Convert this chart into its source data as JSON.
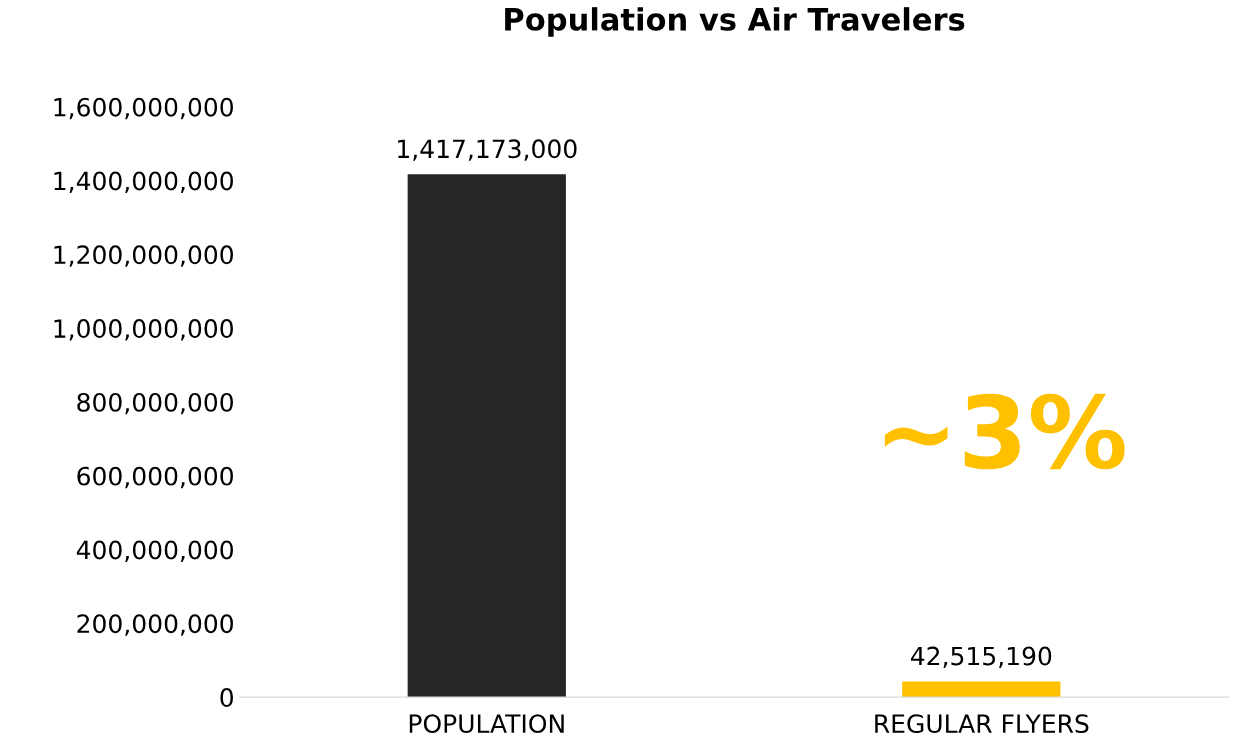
{
  "chart_data": {
    "type": "bar",
    "title": "Population vs Air Travelers",
    "categories": [
      "POPULATION",
      "REGULAR FLYERS"
    ],
    "values": [
      1417173000,
      42515190
    ],
    "colors": [
      "#262626",
      "#ffc000"
    ],
    "ylim": [
      0,
      1600000000
    ],
    "yticks": [
      {
        "value": 0,
        "label": "0"
      },
      {
        "value": 200000000,
        "label": "200,000,000"
      },
      {
        "value": 400000000,
        "label": "400,000,000"
      },
      {
        "value": 600000000,
        "label": "600,000,000"
      },
      {
        "value": 800000000,
        "label": "800,000,000"
      },
      {
        "value": 1000000000,
        "label": "1,000,000,000"
      },
      {
        "value": 1200000000,
        "label": "1,200,000,000"
      },
      {
        "value": 1400000000,
        "label": "1,400,000,000"
      },
      {
        "value": 1600000000,
        "label": "1,600,000,000"
      }
    ],
    "value_labels": [
      "1,417,173,000",
      "42,515,190"
    ],
    "annotations": [
      "~3%"
    ],
    "grid": false,
    "legend": false
  }
}
